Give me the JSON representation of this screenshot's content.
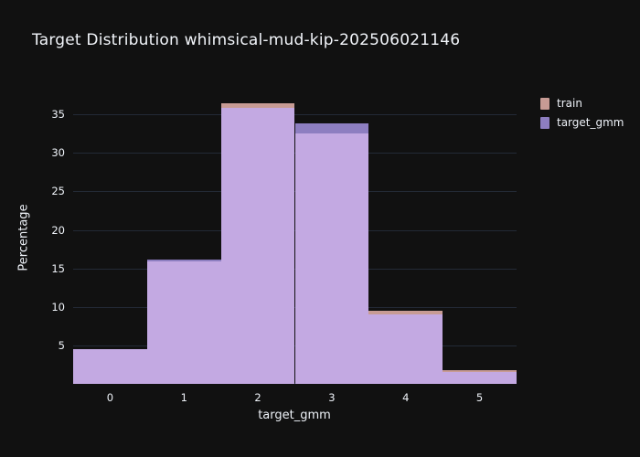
{
  "chart_data": {
    "type": "bar",
    "subtype": "overlaid-histogram",
    "title": "Target Distribution whimsical-mud-kip-202506021146",
    "xlabel": "target_gmm",
    "ylabel": "Percentage",
    "categories": [
      "0",
      "1",
      "2",
      "3",
      "4",
      "5"
    ],
    "series": [
      {
        "name": "train",
        "color": "#c79b94",
        "values": [
          4.5,
          15.9,
          36.4,
          32.5,
          9.5,
          1.8
        ]
      },
      {
        "name": "target_gmm",
        "color": "#8d7ec0",
        "values": [
          4.5,
          16.2,
          35.9,
          33.8,
          9.0,
          1.6
        ]
      }
    ],
    "overlap_color": "#c3a9e2",
    "ylim": [
      0,
      38
    ],
    "yticks": [
      5,
      10,
      15,
      20,
      25,
      30,
      35
    ],
    "grid": true,
    "legend_position": "top-right",
    "colors": {
      "background": "#111111",
      "grid": "#232a36",
      "text": "#f2f5fa"
    }
  }
}
